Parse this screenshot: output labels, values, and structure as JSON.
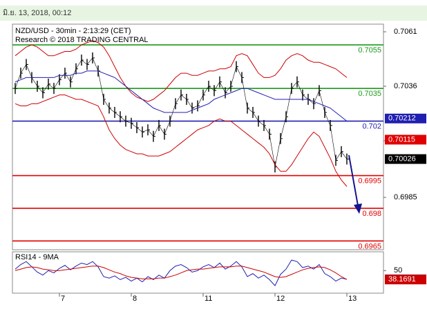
{
  "chart_data": {
    "type": "line",
    "header": "มิ.ย. 13, 2018, 00:12",
    "title": "NZD/USD - 30min - 2:13:29 (CET)",
    "subtitle": "Research © 2018 TRADING CENTRAL",
    "categories": [
      null,
      null,
      null,
      null,
      null,
      null,
      null,
      null,
      "7",
      null,
      null,
      null,
      null,
      null,
      null,
      null,
      null,
      null,
      null,
      null,
      null,
      "8",
      null,
      null,
      null,
      null,
      null,
      null,
      null,
      null,
      null,
      null,
      null,
      null,
      "11",
      null,
      null,
      null,
      null,
      null,
      null,
      null,
      null,
      null,
      null,
      null,
      null,
      "12",
      null,
      null,
      null,
      null,
      null,
      null,
      null,
      null,
      null,
      null,
      null,
      null,
      "13"
    ],
    "ylim": [
      0.6961,
      0.70645
    ],
    "yticks": [
      0.7061,
      0.7036,
      0.7011,
      0.6985
    ],
    "series": [
      {
        "color": "#000000",
        "values": [
          0.7035,
          0.7042,
          0.7046,
          0.704,
          0.7036,
          0.7033,
          0.7037,
          0.7035,
          0.7039,
          0.7042,
          0.7038,
          0.7044,
          0.7048,
          0.7046,
          0.7049,
          0.7043,
          0.703,
          0.7026,
          0.7024,
          0.7022,
          0.702,
          0.7019,
          0.7017,
          0.7015,
          0.7016,
          0.7013,
          0.7018,
          0.7014,
          0.702,
          0.7028,
          0.7032,
          0.703,
          0.7026,
          0.7027,
          0.7032,
          0.7036,
          0.7034,
          0.7038,
          0.7033,
          0.7036,
          0.7045,
          0.704,
          0.7026,
          0.7024,
          0.702,
          0.7018,
          0.7014,
          0.6999,
          0.7012,
          0.7022,
          0.7035,
          0.7038,
          0.7032,
          0.703,
          0.7028,
          0.7034,
          0.7024,
          0.7018,
          0.7002,
          0.7006,
          0.70026
        ]
      },
      {
        "color": "#cc0000",
        "values": [
          0.705,
          0.7052,
          0.7054,
          0.7055,
          0.7054,
          0.7052,
          0.705,
          0.705,
          0.7051,
          0.7052,
          0.7052,
          0.7053,
          0.7055,
          0.7056,
          0.7057,
          0.7056,
          0.7054,
          0.705,
          0.7045,
          0.704,
          0.7036,
          0.7033,
          0.7031,
          0.703,
          0.7029,
          0.703,
          0.7032,
          0.7034,
          0.7037,
          0.704,
          0.7042,
          0.7042,
          0.7041,
          0.7041,
          0.7042,
          0.7043,
          0.7043,
          0.7044,
          0.7044,
          0.7045,
          0.705,
          0.7051,
          0.705,
          0.7046,
          0.7042,
          0.704,
          0.704,
          0.7041,
          0.7044,
          0.7048,
          0.705,
          0.7051,
          0.705,
          0.7048,
          0.7047,
          0.7047,
          0.7046,
          0.7045,
          0.7044,
          0.7042,
          0.704
        ]
      },
      {
        "color": "#cc0000",
        "values": [
          0.7028,
          0.7027,
          0.7027,
          0.7028,
          0.7028,
          0.7029,
          0.703,
          0.7031,
          0.7032,
          0.7032,
          0.7031,
          0.703,
          0.703,
          0.7029,
          0.7028,
          0.7027,
          0.7022,
          0.7016,
          0.7012,
          0.7009,
          0.7007,
          0.7006,
          0.7005,
          0.7005,
          0.7004,
          0.7004,
          0.7004,
          0.7005,
          0.7006,
          0.7008,
          0.701,
          0.7012,
          0.7014,
          0.7016,
          0.7017,
          0.7018,
          0.702,
          0.7021,
          0.702,
          0.702,
          0.7018,
          0.7016,
          0.7014,
          0.7012,
          0.701,
          0.7008,
          0.7005,
          0.7,
          0.6997,
          0.6997,
          0.7,
          0.7004,
          0.7008,
          0.7012,
          0.7015,
          0.7013,
          0.7008,
          0.7003,
          0.6997,
          0.6993,
          0.699
        ]
      },
      {
        "color": "#1f1fb0",
        "values": [
          0.7038,
          0.7039,
          0.704,
          0.704,
          0.704,
          0.704,
          0.704,
          0.704,
          0.7041,
          0.7041,
          0.7041,
          0.7042,
          0.7042,
          0.7043,
          0.7043,
          0.7043,
          0.7042,
          0.7041,
          0.704,
          0.7038,
          0.7036,
          0.7034,
          0.7032,
          0.703,
          0.7028,
          0.7026,
          0.7025,
          0.7024,
          0.7024,
          0.7024,
          0.7024,
          0.7024,
          0.7025,
          0.7026,
          0.7027,
          0.7028,
          0.703,
          0.7031,
          0.7032,
          0.7033,
          0.7034,
          0.7035,
          0.7035,
          0.7034,
          0.7033,
          0.7032,
          0.7031,
          0.703,
          0.703,
          0.703,
          0.703,
          0.703,
          0.703,
          0.703,
          0.7029,
          0.7028,
          0.7027,
          0.7026,
          0.7024,
          0.7022,
          0.702
        ]
      }
    ],
    "levels": [
      {
        "value": 0.7055,
        "color": "#1a9a1a"
      },
      {
        "value": 0.7035,
        "color": "#1a9a1a"
      },
      {
        "value": 0.702,
        "color": "#1f1fb0"
      },
      {
        "value": 0.6995,
        "color": "#e00000"
      },
      {
        "value": 0.698,
        "color": "#e00000"
      },
      {
        "value": 0.6965,
        "color": "#e00000"
      }
    ],
    "markers": [
      {
        "value": 0.70212,
        "color": "#1f1fb0"
      },
      {
        "value": 0.70115,
        "color": "#e00000"
      }
    ],
    "rsi": {
      "title": "RSI14 - 9MA",
      "ylim": [
        20,
        75
      ],
      "yticks": [
        50
      ],
      "series": [
        {
          "color": "#1f1fb0",
          "values": [
            52,
            58,
            62,
            55,
            48,
            44,
            50,
            47,
            53,
            57,
            51,
            56,
            60,
            58,
            62,
            55,
            42,
            40,
            43,
            38,
            41,
            36,
            40,
            35,
            42,
            38,
            44,
            40,
            50,
            56,
            58,
            54,
            48,
            50,
            55,
            58,
            54,
            60,
            52,
            56,
            62,
            55,
            42,
            46,
            40,
            44,
            38,
            30,
            45,
            52,
            64,
            62,
            54,
            56,
            52,
            58,
            46,
            42,
            36,
            40,
            38.3825
          ]
        },
        {
          "color": "#cc0000",
          "values": [
            50,
            52,
            54,
            55,
            54,
            52,
            51,
            50,
            50,
            51,
            52,
            53,
            54,
            55,
            56,
            56,
            54,
            51,
            48,
            46,
            43,
            41,
            40,
            39,
            39,
            39,
            40,
            40,
            42,
            44,
            47,
            50,
            51,
            52,
            52,
            53,
            54,
            55,
            55,
            55,
            56,
            56,
            54,
            52,
            50,
            48,
            45,
            42,
            41,
            42,
            45,
            48,
            51,
            53,
            54,
            55,
            54,
            51,
            47,
            42,
            38.1691
          ]
        }
      ]
    }
  }
}
